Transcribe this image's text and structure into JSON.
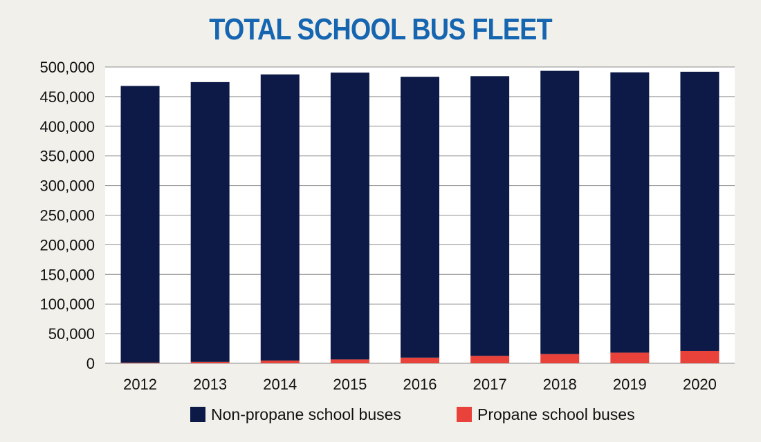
{
  "chart_data": {
    "type": "bar",
    "stacked": true,
    "title": "TOTAL SCHOOL BUS FLEET",
    "xlabel": "",
    "ylabel": "",
    "ylim": [
      0,
      500000
    ],
    "yticks": [
      "0",
      "50,000",
      "100,000",
      "150,000",
      "200,000",
      "250,000",
      "300,000",
      "350,000",
      "400,000",
      "450,000",
      "500,000"
    ],
    "categories": [
      "2012",
      "2013",
      "2014",
      "2015",
      "2016",
      "2017",
      "2018",
      "2019",
      "2020"
    ],
    "series": [
      {
        "name": "Propane school buses",
        "color": "#e8423a",
        "values": [
          1000,
          2500,
          4500,
          6500,
          9500,
          12500,
          15500,
          18000,
          21000
        ]
      },
      {
        "name": "Non-propane school buses",
        "color": "#0d1a47",
        "values": [
          467000,
          472000,
          483000,
          484000,
          474000,
          472000,
          478000,
          473000,
          471000
        ]
      }
    ],
    "grid": true,
    "legend_position": "bottom"
  },
  "legend": [
    {
      "label": "Non-propane school buses",
      "color": "#0d1a47"
    },
    {
      "label": "Propane school buses",
      "color": "#e8423a"
    }
  ]
}
